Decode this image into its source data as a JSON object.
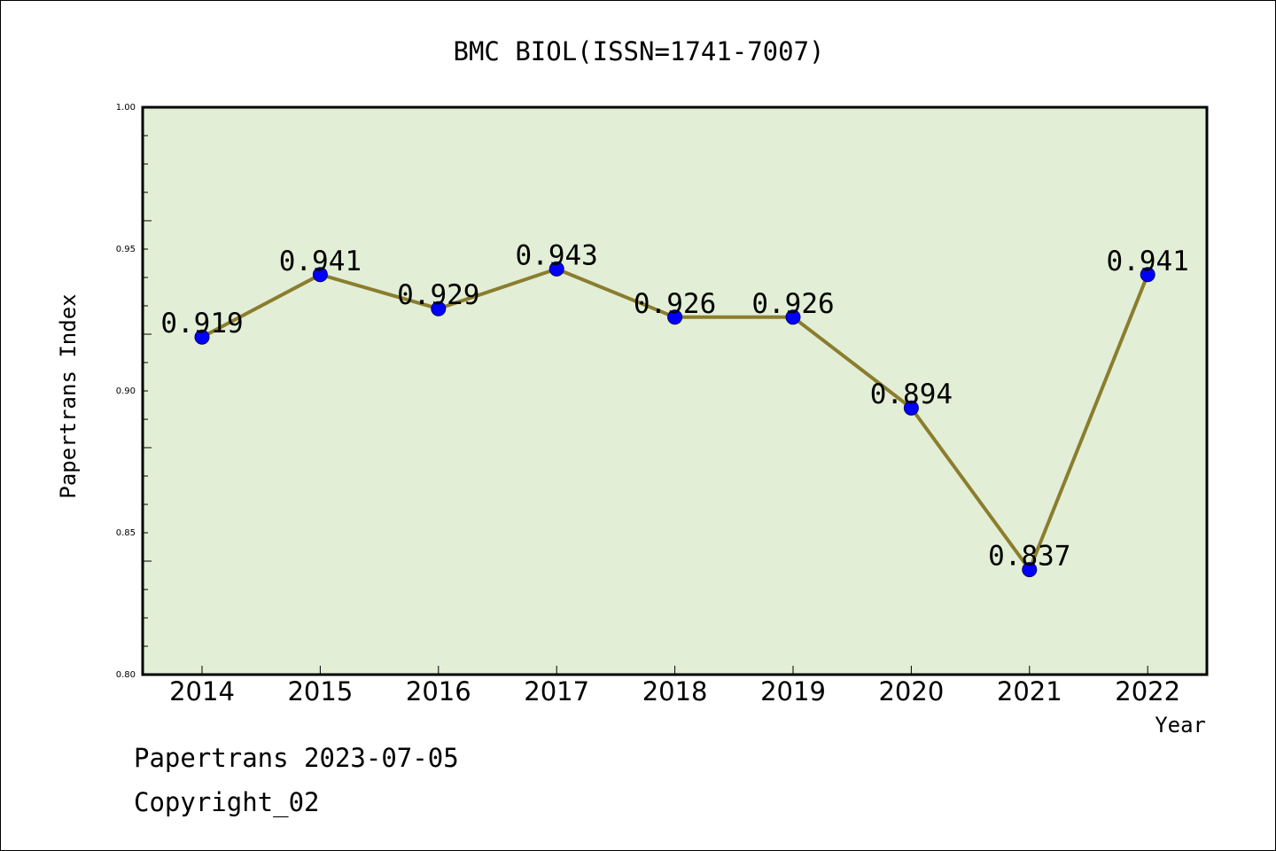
{
  "chart_data": {
    "type": "line",
    "title": "BMC BIOL(ISSN=1741-7007)",
    "xlabel": "Year",
    "ylabel": "Papertrans Index",
    "categories": [
      "2014",
      "2015",
      "2016",
      "2017",
      "2018",
      "2019",
      "2020",
      "2021",
      "2022"
    ],
    "series": [
      {
        "values": [
          0.919,
          0.941,
          0.929,
          0.943,
          0.926,
          0.926,
          0.894,
          0.837,
          0.941
        ],
        "labels": [
          "0.919",
          "0.941",
          "0.929",
          "0.943",
          "0.926",
          "0.926",
          "0.894",
          "0.837",
          "0.941"
        ],
        "line_color": "#8b7d2e",
        "marker_color": "#0000ff"
      }
    ],
    "ylim": [
      0.8,
      1.0
    ],
    "yticks": [
      0.8,
      0.85,
      0.9,
      0.95,
      1.0
    ],
    "ytick_labels": [
      "0.80",
      "0.85",
      "0.90",
      "0.95",
      "1.00"
    ],
    "grid": false,
    "plot_background": "#e2efd6"
  },
  "footer": {
    "line1": "Papertrans 2023-07-05",
    "line2": "Copyright_02"
  }
}
